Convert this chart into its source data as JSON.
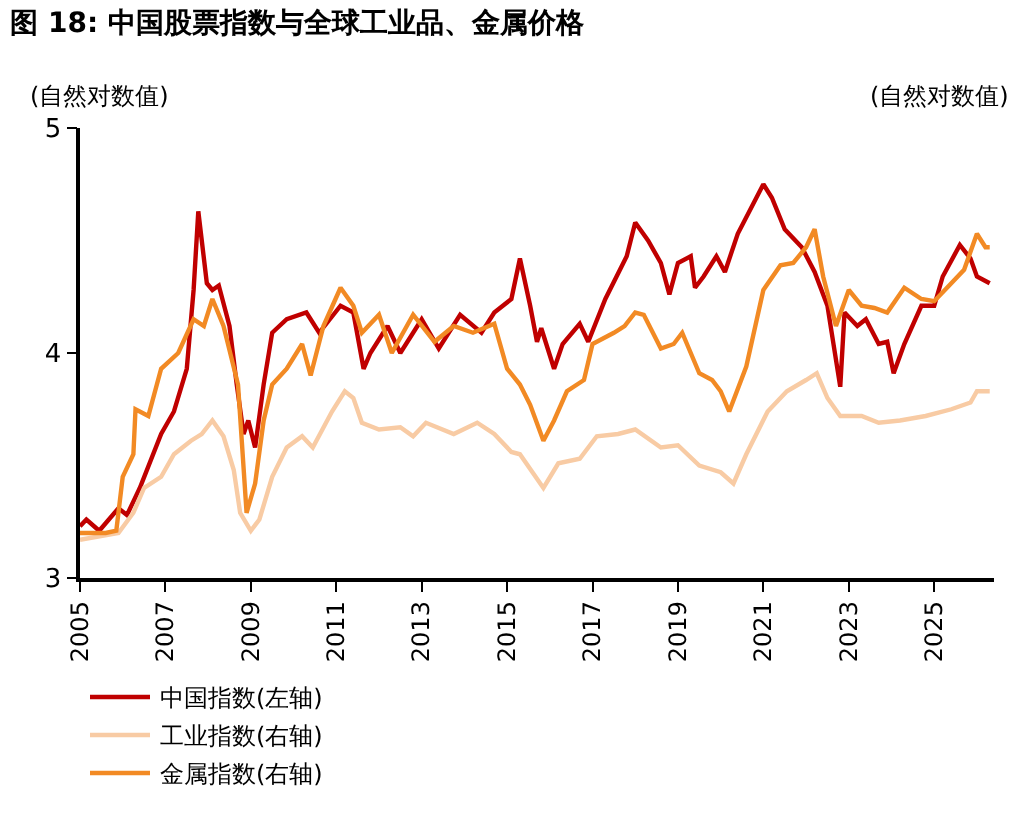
{
  "chart_data": {
    "type": "line",
    "title": "图 18: 中国股票指数与全球工业品、金属价格",
    "ylabel": "(自然对数值)",
    "y2label": "(自然对数值)",
    "xlim": [
      2005,
      2026.4
    ],
    "xticks": [
      2005,
      2007,
      2009,
      2011,
      2013,
      2015,
      2017,
      2019,
      2021,
      2023,
      2025
    ],
    "ylim": [
      3,
      5
    ],
    "yticks": [
      3,
      4,
      5
    ],
    "grid": false,
    "legend": "bottom",
    "line_style": "solid",
    "marker": "none",
    "series": [
      {
        "name": "中国指数(左轴)",
        "color": "#c00000",
        "x": [
          2005.0,
          2005.15,
          2005.45,
          2005.9,
          2006.1,
          2006.4,
          2006.9,
          2007.2,
          2007.5,
          2007.66,
          2007.77,
          2007.97,
          2008.1,
          2008.25,
          2008.5,
          2008.67,
          2008.83,
          2008.94,
          2009.1,
          2009.3,
          2009.5,
          2009.84,
          2010.3,
          2010.6,
          2011.1,
          2011.4,
          2011.64,
          2011.8,
          2012.2,
          2012.5,
          2013.0,
          2013.4,
          2013.9,
          2014.4,
          2014.7,
          2015.1,
          2015.3,
          2015.54,
          2015.7,
          2015.8,
          2016.1,
          2016.3,
          2016.7,
          2016.9,
          2017.3,
          2017.8,
          2018.0,
          2018.3,
          2018.6,
          2018.8,
          2019.0,
          2019.3,
          2019.4,
          2019.6,
          2019.9,
          2020.1,
          2020.4,
          2020.7,
          2021.0,
          2021.2,
          2021.5,
          2021.9,
          2022.2,
          2022.5,
          2022.6,
          2022.8,
          2022.9,
          2023.2,
          2023.4,
          2023.7,
          2023.9,
          2024.05,
          2024.3,
          2024.7,
          2025.0,
          2025.2,
          2025.6,
          2025.85,
          2026.0,
          2026.2,
          2026.3
        ],
        "values": [
          3.23,
          3.26,
          3.21,
          3.31,
          3.28,
          3.4,
          3.64,
          3.74,
          3.93,
          4.28,
          4.63,
          4.31,
          4.28,
          4.3,
          4.12,
          3.86,
          3.64,
          3.7,
          3.58,
          3.86,
          4.09,
          4.15,
          4.18,
          4.09,
          4.21,
          4.18,
          3.93,
          4.0,
          4.12,
          4.0,
          4.15,
          4.02,
          4.17,
          4.09,
          4.18,
          4.24,
          4.42,
          4.21,
          4.05,
          4.11,
          3.93,
          4.04,
          4.13,
          4.05,
          4.24,
          4.43,
          4.58,
          4.5,
          4.4,
          4.26,
          4.4,
          4.43,
          4.29,
          4.34,
          4.43,
          4.36,
          4.53,
          4.64,
          4.75,
          4.69,
          4.55,
          4.47,
          4.36,
          4.21,
          4.09,
          3.85,
          4.18,
          4.12,
          4.15,
          4.04,
          4.05,
          3.91,
          4.04,
          4.21,
          4.21,
          4.34,
          4.48,
          4.42,
          4.34,
          4.32,
          4.31
        ]
      },
      {
        "name": "工业指数(右轴)",
        "color": "#f8cba4",
        "x": [
          2005.0,
          2005.9,
          2006.25,
          2006.5,
          2006.9,
          2007.2,
          2007.6,
          2007.85,
          2008.1,
          2008.36,
          2008.6,
          2008.75,
          2009.0,
          2009.2,
          2009.5,
          2009.84,
          2010.2,
          2010.45,
          2010.9,
          2011.2,
          2011.4,
          2011.6,
          2012.0,
          2012.5,
          2012.8,
          2013.1,
          2013.75,
          2014.3,
          2014.7,
          2015.1,
          2015.3,
          2015.85,
          2016.2,
          2016.7,
          2017.1,
          2017.6,
          2018.0,
          2018.6,
          2019.0,
          2019.5,
          2020.0,
          2020.3,
          2020.6,
          2021.1,
          2021.55,
          2022.0,
          2022.25,
          2022.5,
          2022.8,
          2023.3,
          2023.7,
          2024.2,
          2024.8,
          2025.4,
          2025.85,
          2026.0,
          2026.3
        ],
        "values": [
          3.17,
          3.2,
          3.29,
          3.4,
          3.45,
          3.55,
          3.61,
          3.64,
          3.7,
          3.63,
          3.48,
          3.29,
          3.21,
          3.26,
          3.45,
          3.58,
          3.63,
          3.58,
          3.74,
          3.83,
          3.8,
          3.69,
          3.66,
          3.67,
          3.63,
          3.69,
          3.64,
          3.69,
          3.64,
          3.56,
          3.55,
          3.4,
          3.51,
          3.53,
          3.63,
          3.64,
          3.66,
          3.58,
          3.59,
          3.5,
          3.47,
          3.42,
          3.55,
          3.74,
          3.83,
          3.88,
          3.91,
          3.8,
          3.72,
          3.72,
          3.69,
          3.7,
          3.72,
          3.75,
          3.78,
          3.83,
          3.83
        ]
      },
      {
        "name": "金属指数(右轴)",
        "color": "#f28a24",
        "x": [
          2005.0,
          2005.6,
          2005.85,
          2006.0,
          2006.25,
          2006.3,
          2006.6,
          2006.9,
          2007.3,
          2007.66,
          2007.9,
          2008.1,
          2008.36,
          2008.7,
          2008.9,
          2009.1,
          2009.3,
          2009.5,
          2009.84,
          2010.2,
          2010.4,
          2010.7,
          2011.1,
          2011.4,
          2011.6,
          2012.0,
          2012.3,
          2012.8,
          2013.3,
          2013.75,
          2014.2,
          2014.7,
          2015.0,
          2015.3,
          2015.54,
          2015.85,
          2016.1,
          2016.4,
          2016.8,
          2017.0,
          2017.5,
          2017.75,
          2018.0,
          2018.2,
          2018.6,
          2018.9,
          2019.1,
          2019.5,
          2019.8,
          2020.0,
          2020.2,
          2020.6,
          2021.0,
          2021.4,
          2021.7,
          2022.0,
          2022.2,
          2022.4,
          2022.7,
          2023.0,
          2023.3,
          2023.6,
          2023.9,
          2024.3,
          2024.7,
          2025.0,
          2025.3,
          2025.7,
          2026.0,
          2026.2,
          2026.3
        ],
        "values": [
          3.2,
          3.2,
          3.21,
          3.45,
          3.55,
          3.75,
          3.72,
          3.93,
          4.0,
          4.15,
          4.12,
          4.24,
          4.12,
          3.86,
          3.29,
          3.42,
          3.7,
          3.86,
          3.93,
          4.04,
          3.9,
          4.12,
          4.29,
          4.21,
          4.09,
          4.17,
          4.0,
          4.17,
          4.05,
          4.12,
          4.09,
          4.13,
          3.93,
          3.86,
          3.77,
          3.61,
          3.7,
          3.83,
          3.88,
          4.04,
          4.09,
          4.12,
          4.18,
          4.17,
          4.02,
          4.04,
          4.09,
          3.91,
          3.88,
          3.83,
          3.74,
          3.94,
          4.28,
          4.39,
          4.4,
          4.47,
          4.55,
          4.34,
          4.12,
          4.28,
          4.21,
          4.2,
          4.18,
          4.29,
          4.24,
          4.23,
          4.29,
          4.37,
          4.53,
          4.47,
          4.47
        ]
      }
    ]
  }
}
